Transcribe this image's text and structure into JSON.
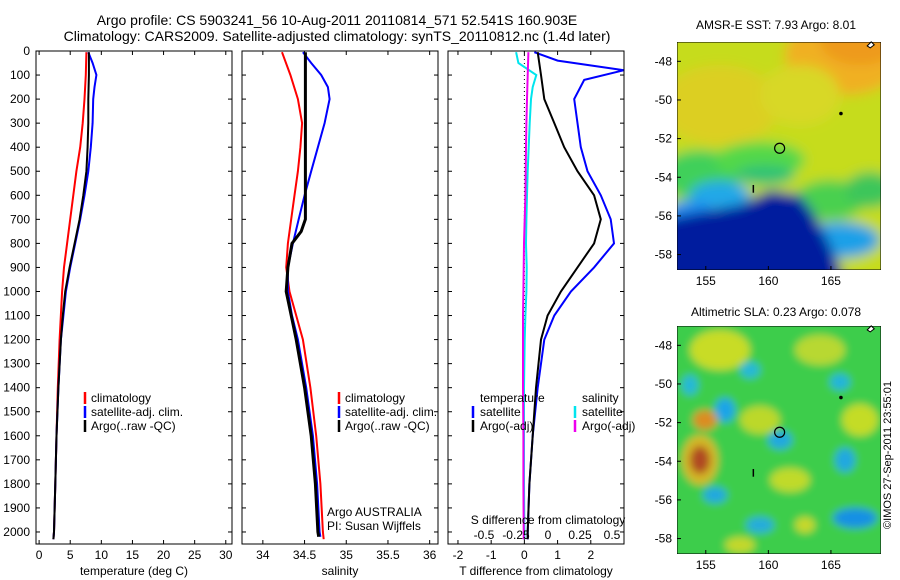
{
  "title_line1": "Argo profile: CS 5903241_56 10-Aug-2011 20110814_571 52.541S 160.903E",
  "title_line2": "Climatology: CARS2009. Satellite-adjusted climatology: synTS_20110812.nc (1.4d later)",
  "colors": {
    "climatology": "#ff0000",
    "satellite": "#0000ff",
    "argo": "#000000",
    "cyan": "#00e5ee",
    "magenta": "#ee00ee"
  },
  "chart_data": [
    {
      "type": "line",
      "xlabel": "temperature (deg C)",
      "xlim": [
        -0.5,
        31
      ],
      "ylim": [
        0,
        2050
      ],
      "xticks": [
        0,
        5,
        10,
        15,
        20,
        25,
        30
      ],
      "yticks": [
        0,
        100,
        200,
        300,
        400,
        500,
        600,
        700,
        800,
        900,
        1000,
        1100,
        1200,
        1300,
        1400,
        1500,
        1600,
        1700,
        1800,
        1900,
        2000
      ],
      "legend": [
        "climatology",
        "satellite-adj. clim.",
        "Argo(..raw -QC)"
      ],
      "series": [
        {
          "name": "climatology",
          "color": "#ff0000",
          "depth": [
            5,
            100,
            200,
            300,
            400,
            500,
            600,
            700,
            800,
            900,
            1000,
            1200,
            1400,
            1600,
            1800,
            2000,
            2030
          ],
          "x": [
            7.6,
            7.5,
            7.3,
            7.0,
            6.6,
            6.0,
            5.5,
            5.0,
            4.5,
            4.0,
            3.7,
            3.3,
            3.0,
            2.8,
            2.6,
            2.4,
            2.3
          ]
        },
        {
          "name": "satellite-adj. clim.",
          "color": "#0000ff",
          "depth": [
            5,
            50,
            100,
            150,
            200,
            300,
            400,
            500,
            600,
            700,
            800,
            900,
            1000,
            1200,
            1400,
            1600,
            1800,
            2000,
            2030
          ],
          "x": [
            7.9,
            8.6,
            9.2,
            8.9,
            8.7,
            8.6,
            8.3,
            7.9,
            7.3,
            6.6,
            5.8,
            5.0,
            4.3,
            3.5,
            3.1,
            2.8,
            2.6,
            2.4,
            2.3
          ]
        },
        {
          "name": "Argo(..raw -QC)",
          "color": "#000000",
          "depth": [
            5,
            100,
            200,
            300,
            400,
            500,
            600,
            700,
            800,
            900,
            1000,
            1100,
            1200,
            1400,
            1600,
            1800,
            2000,
            2030
          ],
          "x": [
            8.0,
            8.0,
            7.9,
            7.9,
            7.8,
            7.6,
            7.1,
            6.5,
            5.7,
            4.9,
            4.2,
            3.8,
            3.5,
            3.1,
            2.8,
            2.6,
            2.4,
            2.3
          ]
        }
      ]
    },
    {
      "type": "line",
      "xlabel": "salinity",
      "xlim": [
        33.75,
        36.1
      ],
      "ylim": [
        0,
        2050
      ],
      "xticks": [
        34,
        34.5,
        35,
        35.5,
        36
      ],
      "legend": [
        "climatology",
        "satellite-adj. clim.",
        "Argo(..raw -QC)"
      ],
      "annotation": [
        "Argo AUSTRALIA",
        "PI: Susan Wijffels"
      ],
      "series": [
        {
          "name": "climatology",
          "color": "#ff0000",
          "depth": [
            5,
            100,
            200,
            300,
            400,
            500,
            600,
            700,
            800,
            900,
            1000,
            1100,
            1200,
            1400,
            1600,
            1800,
            2000,
            2030
          ],
          "x": [
            34.23,
            34.33,
            34.42,
            34.47,
            34.45,
            34.42,
            34.38,
            34.34,
            34.3,
            34.28,
            34.32,
            34.4,
            34.48,
            34.57,
            34.64,
            34.69,
            34.72,
            34.73
          ]
        },
        {
          "name": "satellite-adj. clim.",
          "color": "#0000ff",
          "depth": [
            5,
            50,
            100,
            150,
            200,
            300,
            400,
            500,
            600,
            700,
            800,
            900,
            1000,
            1100,
            1200,
            1400,
            1600,
            1800,
            2000,
            2020
          ],
          "x": [
            34.48,
            34.58,
            34.7,
            34.78,
            34.8,
            34.74,
            34.66,
            34.58,
            34.5,
            34.43,
            34.36,
            34.3,
            34.3,
            34.35,
            34.42,
            34.52,
            34.6,
            34.65,
            34.68,
            34.69
          ]
        },
        {
          "name": "Argo(..raw -QC)",
          "color": "#000000",
          "depth": [
            5,
            100,
            200,
            300,
            400,
            500,
            600,
            700,
            750,
            800,
            900,
            1000,
            1100,
            1200,
            1400,
            1600,
            1800,
            2000,
            2020
          ],
          "x": [
            34.51,
            34.51,
            34.51,
            34.51,
            34.51,
            34.51,
            34.51,
            34.51,
            34.46,
            34.35,
            34.3,
            34.28,
            34.34,
            34.4,
            34.5,
            34.58,
            34.63,
            34.66,
            34.67
          ]
        }
      ]
    },
    {
      "type": "line",
      "xlabel": "T difference from climatology",
      "xlabel2": "S difference from climatology",
      "xlim": [
        -2.3,
        3.0
      ],
      "ylim": [
        0,
        2050
      ],
      "xticks": [
        -2,
        -1,
        0,
        1,
        2
      ],
      "xticks_S": [
        "-0.5",
        "-0.25",
        "0",
        "0.25",
        "0.5"
      ],
      "legend_temp_title": "temperature",
      "legend_sal_title": "salinity",
      "legend": [
        "satellite",
        "Argo(-adj)",
        "satellite",
        "Argo(-adj)"
      ],
      "series": [
        {
          "name": "temperature satellite",
          "color": "#0000ff",
          "depth": [
            5,
            40,
            80,
            120,
            200,
            300,
            400,
            500,
            600,
            700,
            800,
            900,
            1000,
            1100,
            1200,
            1400,
            1600,
            1800,
            2000,
            2030
          ],
          "x": [
            0.3,
            1.0,
            3.0,
            1.8,
            1.5,
            1.6,
            1.7,
            1.9,
            2.3,
            2.6,
            2.7,
            2.1,
            1.4,
            0.9,
            0.6,
            0.4,
            0.25,
            0.15,
            0.1,
            0.1
          ]
        },
        {
          "name": "temperature Argo(-adj)",
          "color": "#000000",
          "depth": [
            5,
            100,
            200,
            300,
            400,
            500,
            600,
            700,
            800,
            900,
            1000,
            1100,
            1200,
            1400,
            1600,
            1800,
            2000,
            2030
          ],
          "x": [
            0.4,
            0.5,
            0.6,
            0.9,
            1.2,
            1.6,
            2.1,
            2.3,
            2.1,
            1.6,
            1.1,
            0.7,
            0.5,
            0.35,
            0.25,
            0.15,
            0.1,
            0.1
          ]
        },
        {
          "name": "salinity satellite",
          "color": "#00e5ee",
          "depth": [
            5,
            50,
            100,
            150,
            200,
            300,
            400,
            500,
            600,
            700,
            800,
            900,
            1000,
            1100,
            1200,
            1400,
            1600,
            1800,
            2000,
            2030
          ],
          "x": [
            -0.25,
            -0.18,
            0.36,
            0.25,
            0.2,
            0.16,
            0.13,
            0.1,
            0.08,
            0.06,
            0.05,
            0.07,
            0.06,
            0.03,
            0.01,
            -0.01,
            -0.01,
            -0.01,
            0.0,
            0.0
          ]
        },
        {
          "name": "salinity Argo(-adj)",
          "color": "#ee00ee",
          "depth": [
            5,
            100,
            200,
            300,
            400,
            500,
            600,
            700,
            800,
            900,
            1000,
            1100,
            1200,
            1400,
            1600,
            1800,
            2000,
            2030
          ],
          "x": [
            0.12,
            0.1,
            0.08,
            0.06,
            0.05,
            0.04,
            0.03,
            0.01,
            -0.01,
            -0.02,
            -0.03,
            -0.04,
            -0.04,
            -0.04,
            -0.03,
            -0.03,
            -0.02,
            -0.02
          ]
        }
      ]
    },
    {
      "type": "heatmap",
      "title": "AMSR-E SST: 7.93 Argo: 8.01",
      "xlim": [
        152.7,
        169
      ],
      "ylim": [
        -58.8,
        -47
      ],
      "xticks": [
        155,
        160,
        165
      ],
      "yticks": [
        -48,
        -50,
        -52,
        -54,
        -56,
        -58
      ],
      "profile_location": [
        160.9,
        -52.5
      ]
    },
    {
      "type": "heatmap",
      "title": "Altimetric SLA: 0.23 Argo: 0.078",
      "xlim": [
        152.7,
        169
      ],
      "ylim": [
        -58.8,
        -47
      ],
      "xticks": [
        155,
        160,
        165
      ],
      "yticks": [
        -48,
        -50,
        -52,
        -54,
        -56,
        -58
      ],
      "profile_location": [
        160.9,
        -52.5
      ]
    }
  ],
  "watermark": "©IMOS 27-Sep-2011 23:55:01"
}
